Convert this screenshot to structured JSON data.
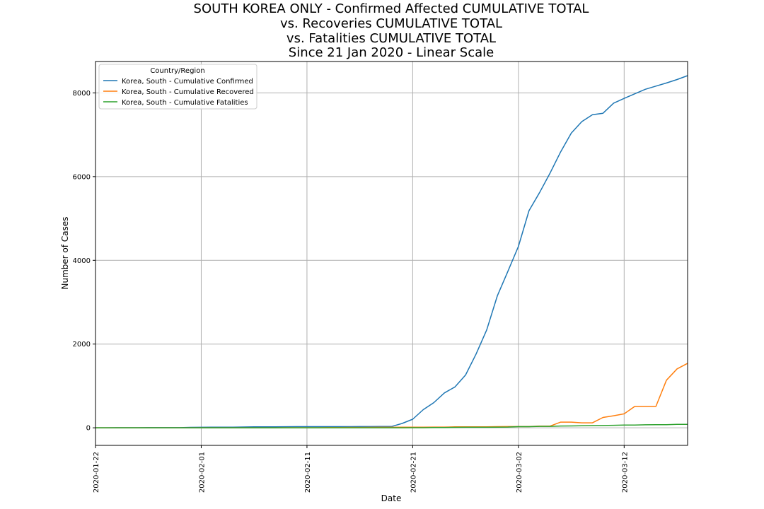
{
  "chart_data": {
    "type": "line",
    "title_lines": [
      "SOUTH KOREA ONLY - Confirmed Affected CUMULATIVE TOTAL",
      "vs. Recoveries CUMULATIVE TOTAL",
      "vs. Fatalities CUMULATIVE TOTAL",
      "Since 21 Jan 2020 - Linear Scale"
    ],
    "xlabel": "Date",
    "ylabel": "Number of Cases",
    "x_ticks": [
      "2020-01-22",
      "2020-02-01",
      "2020-02-11",
      "2020-02-21",
      "2020-03-02",
      "2020-03-12"
    ],
    "y_ticks": [
      0,
      2000,
      4000,
      6000,
      8000
    ],
    "ylim": [
      -420,
      8750
    ],
    "grid": true,
    "legend": {
      "title": "Country/Region",
      "placement": "top-left"
    },
    "x": [
      "2020-01-22",
      "2020-01-23",
      "2020-01-24",
      "2020-01-25",
      "2020-01-26",
      "2020-01-27",
      "2020-01-28",
      "2020-01-29",
      "2020-01-30",
      "2020-01-31",
      "2020-02-01",
      "2020-02-02",
      "2020-02-03",
      "2020-02-04",
      "2020-02-05",
      "2020-02-06",
      "2020-02-07",
      "2020-02-08",
      "2020-02-09",
      "2020-02-10",
      "2020-02-11",
      "2020-02-12",
      "2020-02-13",
      "2020-02-14",
      "2020-02-15",
      "2020-02-16",
      "2020-02-17",
      "2020-02-18",
      "2020-02-19",
      "2020-02-20",
      "2020-02-21",
      "2020-02-22",
      "2020-02-23",
      "2020-02-24",
      "2020-02-25",
      "2020-02-26",
      "2020-02-27",
      "2020-02-28",
      "2020-02-29",
      "2020-03-01",
      "2020-03-02",
      "2020-03-03",
      "2020-03-04",
      "2020-03-05",
      "2020-03-06",
      "2020-03-07",
      "2020-03-08",
      "2020-03-09",
      "2020-03-10",
      "2020-03-11",
      "2020-03-12",
      "2020-03-13",
      "2020-03-14",
      "2020-03-15",
      "2020-03-16",
      "2020-03-17",
      "2020-03-18"
    ],
    "series": [
      {
        "name": "Korea, South - Cumulative Confirmed",
        "color": "#1f77b4",
        "values": [
          1,
          1,
          2,
          2,
          3,
          4,
          4,
          4,
          4,
          11,
          12,
          15,
          15,
          16,
          19,
          23,
          24,
          24,
          25,
          27,
          28,
          28,
          28,
          28,
          28,
          29,
          30,
          31,
          31,
          104,
          204,
          433,
          602,
          833,
          977,
          1261,
          1766,
          2337,
          3150,
          3736,
          4335,
          5186,
          5621,
          6088,
          6593,
          7041,
          7314,
          7478,
          7513,
          7755,
          7869,
          7979,
          8086,
          8162,
          8236,
          8320,
          8413
        ]
      },
      {
        "name": "Korea, South - Cumulative Recovered",
        "color": "#ff7f0e",
        "values": [
          0,
          0,
          0,
          0,
          0,
          0,
          0,
          0,
          0,
          0,
          0,
          0,
          0,
          0,
          0,
          0,
          1,
          1,
          3,
          3,
          3,
          3,
          7,
          7,
          9,
          9,
          10,
          12,
          12,
          16,
          16,
          16,
          18,
          18,
          22,
          22,
          22,
          22,
          27,
          30,
          30,
          30,
          41,
          41,
          135,
          135,
          118,
          118,
          247,
          288,
          333,
          510,
          510,
          510,
          1137,
          1407,
          1540
        ]
      },
      {
        "name": "Korea, South - Cumulative Fatalities",
        "color": "#2ca02c",
        "values": [
          0,
          0,
          0,
          0,
          0,
          0,
          0,
          0,
          0,
          0,
          0,
          0,
          0,
          0,
          0,
          0,
          0,
          0,
          0,
          0,
          0,
          0,
          0,
          0,
          0,
          0,
          0,
          0,
          0,
          1,
          2,
          2,
          6,
          8,
          10,
          12,
          13,
          13,
          16,
          17,
          28,
          28,
          35,
          35,
          42,
          44,
          50,
          53,
          54,
          60,
          66,
          66,
          72,
          75,
          75,
          81,
          84
        ]
      }
    ]
  }
}
